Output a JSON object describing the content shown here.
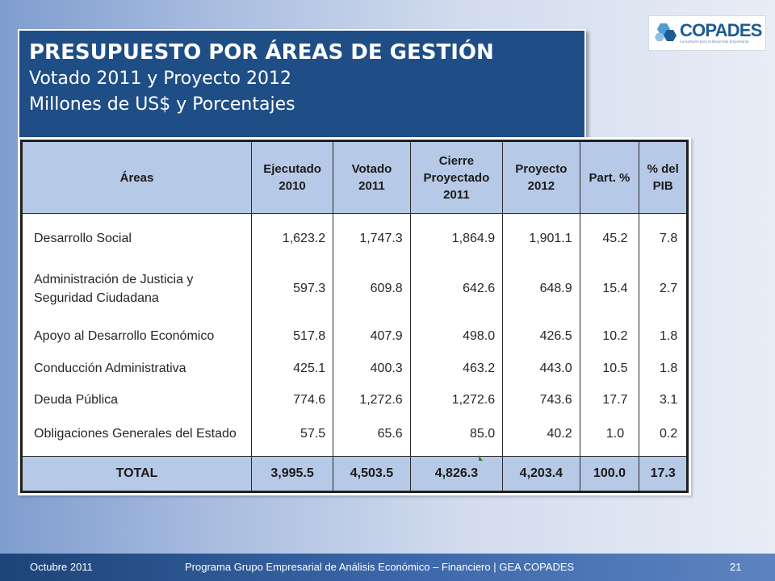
{
  "title": {
    "main": "PRESUPUESTO POR ÁREAS DE GESTIÓN",
    "line1": "Votado 2011 y Proyecto 2012",
    "line2": "Millones de US$ y Porcentajes"
  },
  "logo": {
    "brand": "COPADES",
    "tagline": "Consultores para el Desarrollo Empresarial"
  },
  "table": {
    "headers": {
      "area": "Áreas",
      "c1_l1": "Ejecutado",
      "c1_l2": "2010",
      "c2_l1": "Votado",
      "c2_l2": "2011",
      "c3_l1": "Cierre",
      "c3_l2": "Proyectado",
      "c3_l3": "2011",
      "c4_l1": "Proyecto",
      "c4_l2": "2012",
      "c5": "Part. %",
      "c6_l1": "% del",
      "c6_l2": "PIB"
    },
    "rows": [
      {
        "area": "Desarrollo Social",
        "ejec2010": "1,623.2",
        "votado2011": "1,747.3",
        "cierre2011": "1,864.9",
        "proyecto2012": "1,901.1",
        "part": "45.2",
        "pib": "7.8"
      },
      {
        "area": "Administración de Justicia y Seguridad Ciudadana",
        "ejec2010": "597.3",
        "votado2011": "609.8",
        "cierre2011": "642.6",
        "proyecto2012": "648.9",
        "part": "15.4",
        "pib": "2.7"
      },
      {
        "area": "Apoyo al Desarrollo Económico",
        "ejec2010": "517.8",
        "votado2011": "407.9",
        "cierre2011": "498.0",
        "proyecto2012": "426.5",
        "part": "10.2",
        "pib": "1.8"
      },
      {
        "area": "Conducción Administrativa",
        "ejec2010": "425.1",
        "votado2011": "400.3",
        "cierre2011": "463.2",
        "proyecto2012": "443.0",
        "part": "10.5",
        "pib": "1.8"
      },
      {
        "area": "Deuda Pública",
        "ejec2010": "774.6",
        "votado2011": "1,272.6",
        "cierre2011": "1,272.6",
        "proyecto2012": "743.6",
        "part": "17.7",
        "pib": "3.1"
      },
      {
        "area": "Obligaciones Generales del Estado",
        "ejec2010": "57.5",
        "votado2011": "65.6",
        "cierre2011": "85.0",
        "proyecto2012": "40.2",
        "part": "1.0",
        "pib": "0.2"
      }
    ],
    "total": {
      "label": "TOTAL",
      "ejec2010": "3,995.5",
      "votado2011": "4,503.5",
      "cierre2011": "4,826.3",
      "proyecto2012": "4,203.4",
      "part": "100.0",
      "pib": "17.3"
    }
  },
  "footer": {
    "date": "Octubre 2011",
    "program": "Programa Grupo Empresarial de Análisis Económico – Financiero | GEA COPADES",
    "page": "21"
  },
  "colors": {
    "title_bg": "#1f4e87",
    "header_bg": "#b6c9e6",
    "footer_bg": "#1d4478",
    "logo_blue": "#1b5c95"
  }
}
